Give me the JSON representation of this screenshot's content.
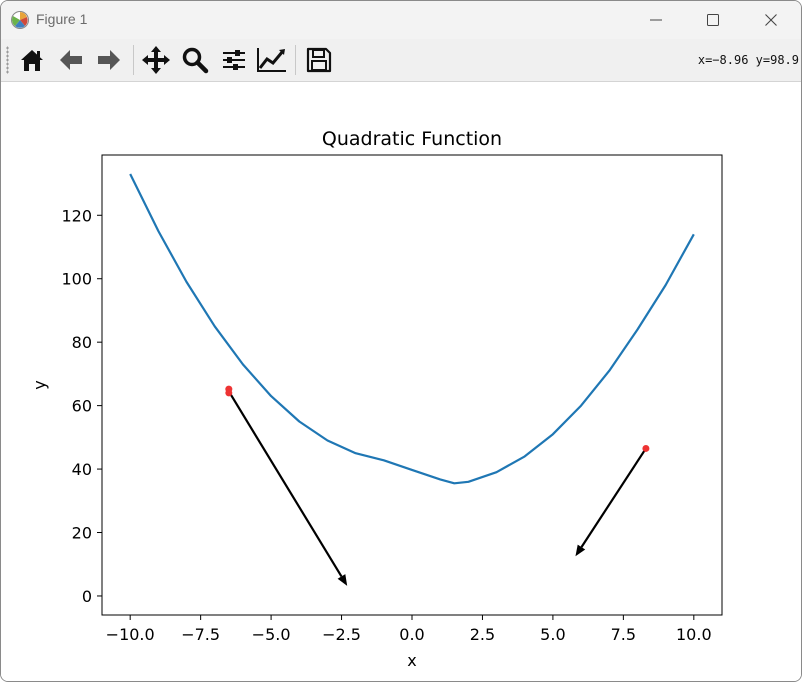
{
  "window": {
    "title": "Figure 1"
  },
  "toolbar": {
    "buttons": [
      {
        "name": "home",
        "icon": "home-icon"
      },
      {
        "name": "back",
        "icon": "arrow-left-icon"
      },
      {
        "name": "forward",
        "icon": "arrow-right-icon"
      },
      {
        "name": "pan",
        "icon": "move-icon"
      },
      {
        "name": "zoom",
        "icon": "magnifier-icon"
      },
      {
        "name": "subplots",
        "icon": "sliders-icon"
      },
      {
        "name": "customize",
        "icon": "line-chart-icon"
      },
      {
        "name": "save",
        "icon": "floppy-disk-icon"
      }
    ],
    "coords_text": "x=−8.96 y=98.9"
  },
  "chart_data": {
    "type": "line",
    "title": "Quadratic Function",
    "xlabel": "x",
    "ylabel": "y",
    "xlim": [
      -11,
      11
    ],
    "ylim": [
      -6,
      139
    ],
    "xticks": [
      -10,
      -7.5,
      -5,
      -2.5,
      0,
      2.5,
      5,
      7.5,
      10
    ],
    "xtick_labels": [
      "−10.0",
      "−7.5",
      "−5.0",
      "−2.5",
      "0.0",
      "2.5",
      "5.0",
      "7.5",
      "10.0"
    ],
    "yticks": [
      0,
      20,
      40,
      60,
      80,
      100,
      120
    ],
    "ytick_labels": [
      "0",
      "20",
      "40",
      "60",
      "80",
      "100",
      "120"
    ],
    "grid": false,
    "line_color": "#1f77b4",
    "point_color": "#ee3333",
    "curve": {
      "x": [
        -10,
        -9,
        -8,
        -7,
        -6,
        -5,
        -4,
        -3,
        -2,
        -1,
        0,
        1,
        1.5,
        2,
        3,
        4,
        5,
        6,
        7,
        8,
        9,
        10
      ],
      "y": [
        133.0,
        115.0,
        99.0,
        85.0,
        73.0,
        63.0,
        55.0,
        49.0,
        45.0,
        42.75,
        39.75,
        36.75,
        35.5,
        36.0,
        39.0,
        44.0,
        51.0,
        60.0,
        71.0,
        84.0,
        98.0,
        114.0
      ]
    },
    "points": [
      {
        "x": -6.5,
        "y": 65.2
      },
      {
        "x": -6.5,
        "y": 64.0
      },
      {
        "x": 8.3,
        "y": 46.5
      }
    ],
    "arrows": [
      {
        "x0": -6.5,
        "y0": 64.5,
        "x1": -2.3,
        "y1": 3.2
      },
      {
        "x0": 8.3,
        "y0": 46.5,
        "x1": 5.8,
        "y1": 12.5
      }
    ]
  }
}
